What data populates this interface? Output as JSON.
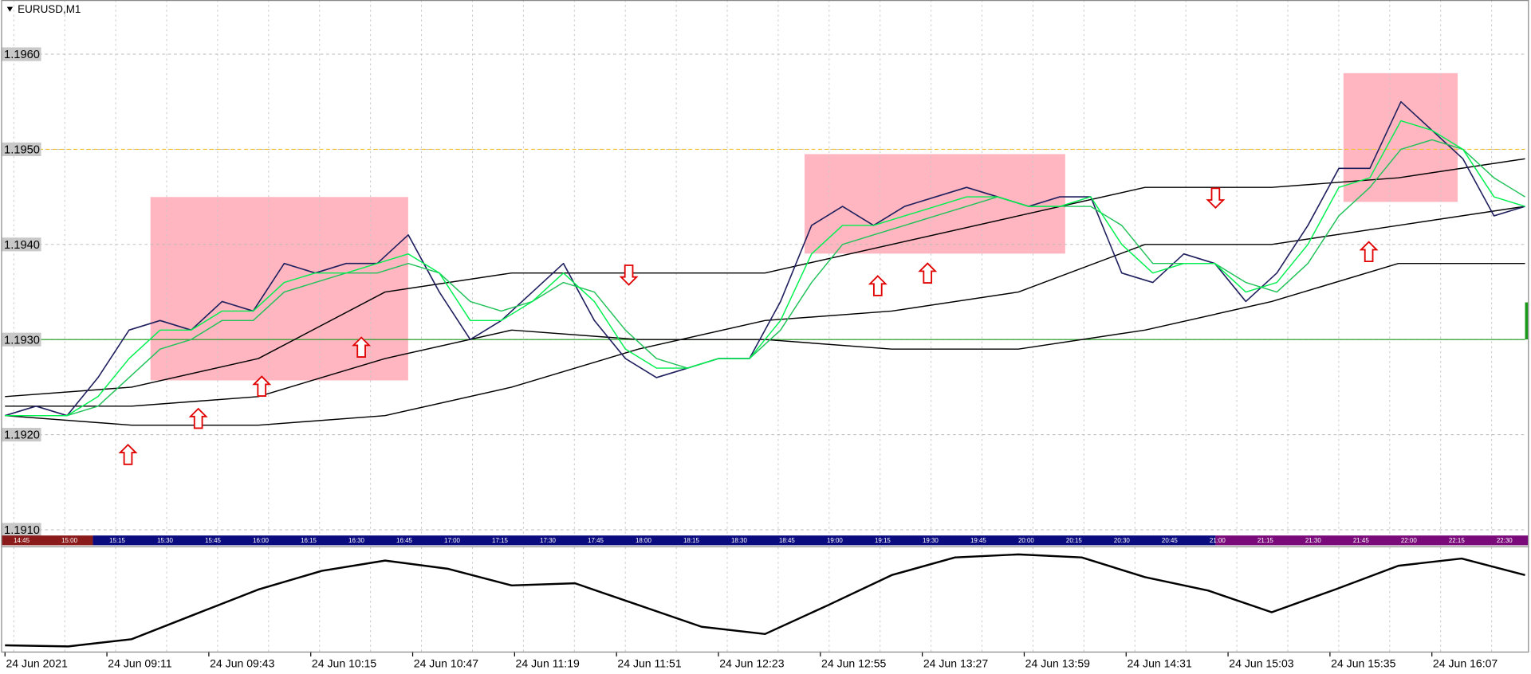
{
  "chart_data": [
    {
      "type": "line",
      "title": "EURUSD,M1",
      "ylim": [
        1.19095,
        1.19657
      ],
      "yticks": [
        {
          "value": 1.196,
          "label": "1.1960"
        },
        {
          "value": 1.195,
          "label": "1.1950"
        },
        {
          "value": 1.194,
          "label": "1.1940"
        },
        {
          "value": 1.193,
          "label": "1.1930"
        },
        {
          "value": 1.192,
          "label": "1.1920"
        },
        {
          "value": 1.191,
          "label": "1.1910"
        }
      ],
      "grid": true,
      "levels": [
        {
          "value": 1.195,
          "color": "#f2c230",
          "style": "dashed"
        },
        {
          "value": 1.193,
          "color": "#1a9a1a",
          "style": "solid"
        }
      ],
      "series": [
        {
          "color": "#000000",
          "values": [
            1.1924,
            1.1925,
            1.1928,
            1.1935,
            1.1937,
            1.1937,
            1.1937,
            1.194,
            1.1943,
            1.1946,
            1.1946,
            1.1947,
            1.1949
          ]
        },
        {
          "color": "#000000",
          "values": [
            1.1922,
            1.1921,
            1.1921,
            1.1922,
            1.1925,
            1.1929,
            1.1932,
            1.1933,
            1.1935,
            1.194,
            1.194,
            1.1942,
            1.1944
          ]
        },
        {
          "color": "#000000",
          "values": [
            1.1923,
            1.1923,
            1.1924,
            1.1928,
            1.1931,
            1.193,
            1.193,
            1.1929,
            1.1929,
            1.1931,
            1.1934,
            1.1938,
            1.1938
          ]
        },
        {
          "color": "#1f1f5e",
          "values": [
            1.1922,
            1.1923,
            1.1922,
            1.1926,
            1.1931,
            1.1932,
            1.1931,
            1.1934,
            1.1933,
            1.1938,
            1.1937,
            1.1938,
            1.1938,
            1.1941,
            1.1935,
            1.193,
            1.1932,
            1.1935,
            1.1938,
            1.1932,
            1.1928,
            1.1926,
            1.1927,
            1.1928,
            1.1928,
            1.1934,
            1.1942,
            1.1944,
            1.1942,
            1.1944,
            1.1945,
            1.1946,
            1.1945,
            1.1944,
            1.1945,
            1.1945,
            1.1937,
            1.1936,
            1.1939,
            1.1938,
            1.1934,
            1.1937,
            1.1942,
            1.1948,
            1.1948,
            1.1955,
            1.1952,
            1.1949,
            1.1943,
            1.1944
          ]
        },
        {
          "color": "#22c25a",
          "values": [
            1.1922,
            1.1922,
            1.1922,
            1.1923,
            1.1926,
            1.1929,
            1.193,
            1.1932,
            1.1932,
            1.1935,
            1.1936,
            1.1937,
            1.1937,
            1.1938,
            1.1937,
            1.1934,
            1.1933,
            1.1934,
            1.1936,
            1.1935,
            1.1931,
            1.1928,
            1.1927,
            1.1928,
            1.1928,
            1.1931,
            1.1936,
            1.194,
            1.1941,
            1.1942,
            1.1943,
            1.1944,
            1.1945,
            1.1944,
            1.1944,
            1.1944,
            1.1942,
            1.1938,
            1.1938,
            1.1938,
            1.1936,
            1.1935,
            1.1938,
            1.1943,
            1.1946,
            1.195,
            1.1951,
            1.195,
            1.1947,
            1.1945
          ]
        },
        {
          "color": "#00f050",
          "values": [
            1.1922,
            1.1922,
            1.1922,
            1.1924,
            1.1928,
            1.1931,
            1.1931,
            1.1933,
            1.1933,
            1.1936,
            1.1937,
            1.1937,
            1.1938,
            1.1939,
            1.1937,
            1.1932,
            1.1932,
            1.1934,
            1.1937,
            1.1934,
            1.1929,
            1.1927,
            1.1927,
            1.1928,
            1.1928,
            1.1932,
            1.1939,
            1.1942,
            1.1942,
            1.1943,
            1.1944,
            1.1945,
            1.1945,
            1.1944,
            1.1944,
            1.1945,
            1.194,
            1.1937,
            1.1938,
            1.1938,
            1.1935,
            1.1936,
            1.194,
            1.1946,
            1.1947,
            1.1953,
            1.1952,
            1.195,
            1.1945,
            1.1944
          ]
        }
      ],
      "session_labels": [
        "14:45",
        "15:00",
        "15:15",
        "15:30",
        "15:45",
        "16:00",
        "16:15",
        "16:30",
        "16:45",
        "17:00",
        "17:15",
        "17:30",
        "17:45",
        "18:00",
        "18:15",
        "18:30",
        "18:45",
        "19:00",
        "19:15",
        "19:30",
        "19:45",
        "20:00",
        "20:15",
        "20:30",
        "20:45",
        "21:00",
        "21:15",
        "21:30",
        "21:45",
        "22:00",
        "22:15",
        "22:30"
      ]
    },
    {
      "type": "line",
      "ylim": [
        0,
        100
      ],
      "series": [
        {
          "color": "#000000",
          "values": [
            6,
            5,
            12,
            36,
            60,
            78,
            88,
            80,
            64,
            66,
            45,
            24,
            17,
            45,
            74,
            91,
            94,
            91,
            72,
            59,
            38,
            60,
            83,
            90,
            74
          ]
        }
      ],
      "time_labels": [
        "24 Jun 2021",
        "24 Jun 09:11",
        "24 Jun 09:43",
        "24 Jun 10:15",
        "24 Jun 10:47",
        "24 Jun 11:19",
        "24 Jun 11:51",
        "24 Jun 12:23",
        "24 Jun 12:55",
        "24 Jun 13:27",
        "24 Jun 13:59",
        "24 Jun 14:31",
        "24 Jun 15:03",
        "24 Jun 15:35",
        "24 Jun 16:07"
      ]
    }
  ]
}
